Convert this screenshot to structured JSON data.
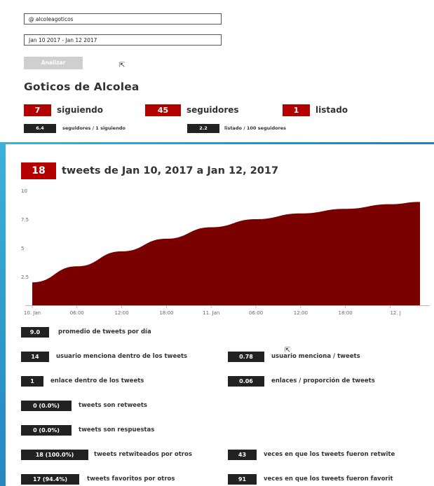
{
  "form": {
    "username": "@ alcoleagoticos",
    "date_range": "Jan 10 2017 - Jan 12 2017",
    "analyze_label": "Analizar"
  },
  "profile": {
    "title": "Goticos de Alcolea",
    "following_count": "7",
    "following_label": "siguiendo",
    "followers_count": "45",
    "followers_label": "seguidores",
    "listed_count": "1",
    "listed_label": "listado",
    "ratio1_value": "6.4",
    "ratio1_label": "seguidores / 1 siguiendo",
    "ratio2_value": "2.2",
    "ratio2_label": "listado / 100 seguidores"
  },
  "tweets": {
    "count": "18",
    "title": "tweets de Jan 10, 2017 a Jan 12, 2017"
  },
  "chart_data": {
    "type": "area",
    "x_ticks": [
      "10. Jan",
      "06:00",
      "12:00",
      "18:00",
      "11. Jan",
      "06:00",
      "12:00",
      "18:00",
      "12. J"
    ],
    "y_ticks": [
      "10",
      "7.5",
      "5",
      "2.5"
    ],
    "ylim": [
      0,
      10
    ],
    "x": [
      0,
      6,
      12,
      18,
      24,
      30,
      36,
      42,
      48,
      52
    ],
    "values": [
      2.0,
      3.4,
      4.7,
      5.8,
      6.8,
      7.5,
      8.0,
      8.4,
      8.8,
      9.0
    ],
    "color": "#7a0000"
  },
  "metrics": {
    "avg_value": "9.0",
    "avg_label": "promedio de tweets por día",
    "mentions_value": "14",
    "mentions_label": "usuario menciona dentro de los tweets",
    "mentions_ratio_value": "0.78",
    "mentions_ratio_label": "usuario menciona / tweets",
    "links_value": "1",
    "links_label": "enlace dentro de los tweets",
    "links_ratio_value": "0.06",
    "links_ratio_label": "enlaces / proporción de tweets",
    "retweets_value": "0 (0.0%)",
    "retweets_label": "tweets son retweets",
    "replies_value": "0 (0.0%)",
    "replies_label": "tweets son respuestas",
    "retweeted_value": "18 (100.0%)",
    "retweeted_label": "tweets retwiteados por otros",
    "retweet_times_value": "43",
    "retweet_times_label": "veces en que los tweets fueron retwite",
    "favorited_value": "17 (94.4%)",
    "favorited_label": "tweets favoritos por otros",
    "fav_times_value": "91",
    "fav_times_label": "veces en que los tweets fueron favorit"
  }
}
